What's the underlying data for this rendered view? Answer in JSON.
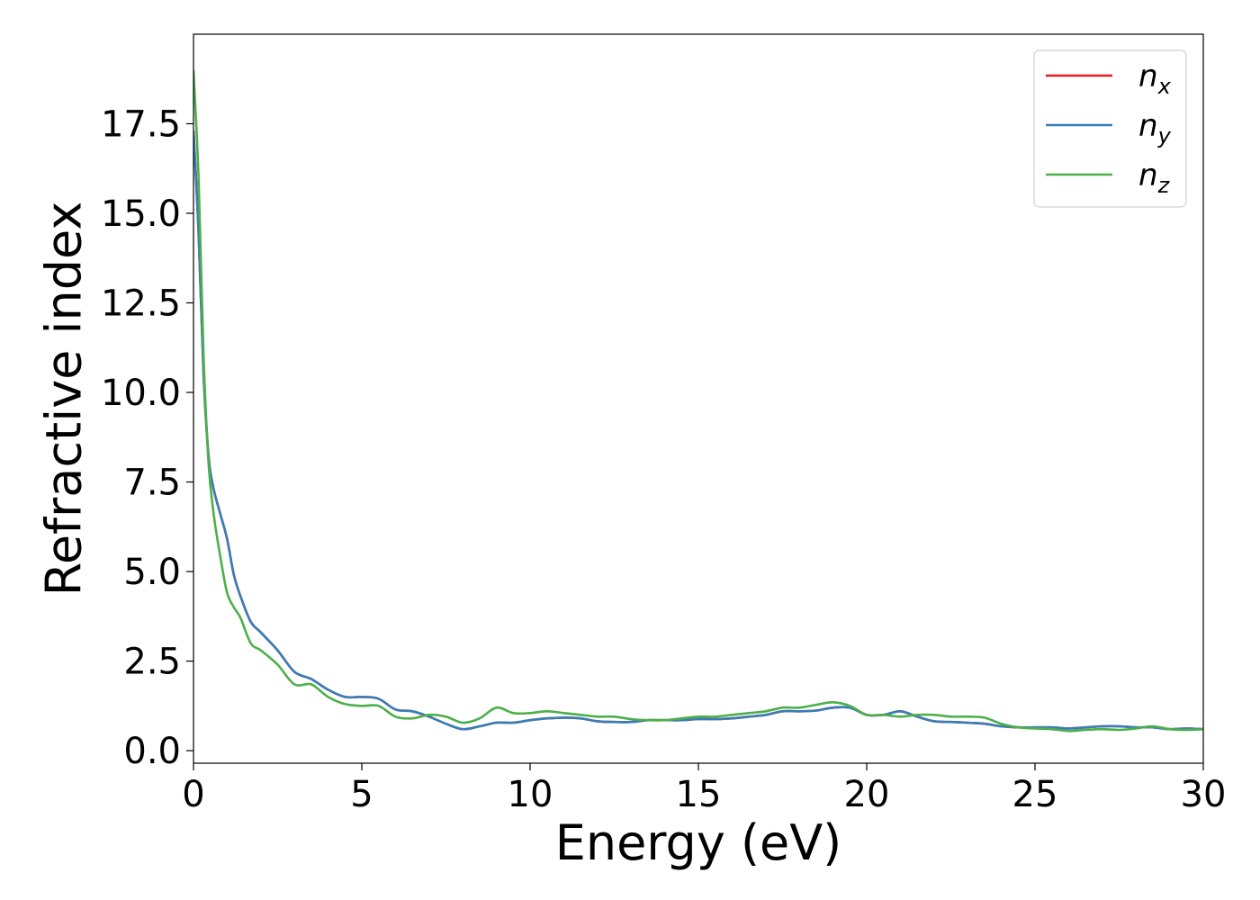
{
  "chart_data": {
    "type": "line",
    "title": "",
    "xlabel": "Energy (eV)",
    "ylabel": "Refractive index",
    "xlim": [
      0,
      30
    ],
    "ylim": [
      -0.35,
      20.0
    ],
    "xticks": [
      0,
      5,
      10,
      15,
      20,
      25,
      30
    ],
    "xtick_labels": [
      "0",
      "5",
      "10",
      "15",
      "20",
      "25",
      "30"
    ],
    "yticks": [
      0.0,
      2.5,
      5.0,
      7.5,
      10.0,
      12.5,
      15.0,
      17.5
    ],
    "ytick_labels": [
      "0.0",
      "2.5",
      "5.0",
      "7.5",
      "10.0",
      "12.5",
      "15.0",
      "17.5"
    ],
    "grid": false,
    "legend_position": "top-right",
    "series": [
      {
        "name": "n_x",
        "label_base": "n",
        "label_sub": "x",
        "color": "#e41a1c",
        "x": [
          0,
          0.15,
          0.3,
          0.45,
          0.6,
          0.8,
          1.0,
          1.2,
          1.4,
          1.7,
          2.0,
          2.5,
          3.0,
          3.5,
          4.0,
          4.5,
          5.0,
          5.5,
          6.0,
          6.5,
          7.0,
          7.5,
          8.0,
          8.5,
          9.0,
          9.5,
          10.0,
          10.5,
          11.0,
          11.5,
          12.0,
          12.5,
          13.0,
          13.5,
          14.0,
          14.5,
          15.0,
          15.5,
          16.0,
          16.5,
          17.0,
          17.5,
          18.0,
          18.5,
          19.0,
          19.5,
          20.0,
          20.5,
          21.0,
          21.5,
          22.0,
          22.5,
          23.0,
          23.5,
          24.0,
          24.5,
          25.0,
          25.5,
          26.0,
          26.5,
          27.0,
          27.5,
          28.0,
          28.5,
          29.0,
          29.5,
          30.0
        ],
        "y": [
          17.3,
          14.5,
          10.5,
          8.2,
          7.3,
          6.6,
          5.9,
          4.9,
          4.3,
          3.6,
          3.3,
          2.8,
          2.2,
          2.0,
          1.7,
          1.5,
          1.5,
          1.45,
          1.15,
          1.1,
          0.95,
          0.75,
          0.6,
          0.68,
          0.78,
          0.78,
          0.85,
          0.9,
          0.92,
          0.9,
          0.82,
          0.8,
          0.8,
          0.85,
          0.85,
          0.85,
          0.88,
          0.88,
          0.9,
          0.95,
          1.0,
          1.1,
          1.1,
          1.12,
          1.2,
          1.2,
          1.0,
          1.0,
          1.1,
          0.95,
          0.82,
          0.8,
          0.78,
          0.75,
          0.68,
          0.65,
          0.65,
          0.65,
          0.62,
          0.65,
          0.68,
          0.68,
          0.65,
          0.65,
          0.6,
          0.62,
          0.6
        ]
      },
      {
        "name": "n_y",
        "label_base": "n",
        "label_sub": "y",
        "color": "#377eb8",
        "x": [
          0,
          0.15,
          0.3,
          0.45,
          0.6,
          0.8,
          1.0,
          1.2,
          1.4,
          1.7,
          2.0,
          2.5,
          3.0,
          3.5,
          4.0,
          4.5,
          5.0,
          5.5,
          6.0,
          6.5,
          7.0,
          7.5,
          8.0,
          8.5,
          9.0,
          9.5,
          10.0,
          10.5,
          11.0,
          11.5,
          12.0,
          12.5,
          13.0,
          13.5,
          14.0,
          14.5,
          15.0,
          15.5,
          16.0,
          16.5,
          17.0,
          17.5,
          18.0,
          18.5,
          19.0,
          19.5,
          20.0,
          20.5,
          21.0,
          21.5,
          22.0,
          22.5,
          23.0,
          23.5,
          24.0,
          24.5,
          25.0,
          25.5,
          26.0,
          26.5,
          27.0,
          27.5,
          28.0,
          28.5,
          29.0,
          29.5,
          30.0
        ],
        "y": [
          17.3,
          14.5,
          10.5,
          8.2,
          7.3,
          6.6,
          5.9,
          4.9,
          4.3,
          3.6,
          3.3,
          2.8,
          2.2,
          2.0,
          1.7,
          1.5,
          1.5,
          1.45,
          1.15,
          1.1,
          0.95,
          0.75,
          0.6,
          0.68,
          0.78,
          0.78,
          0.85,
          0.9,
          0.92,
          0.9,
          0.82,
          0.8,
          0.8,
          0.85,
          0.85,
          0.85,
          0.88,
          0.88,
          0.9,
          0.95,
          1.0,
          1.1,
          1.1,
          1.12,
          1.2,
          1.2,
          1.0,
          1.0,
          1.1,
          0.95,
          0.82,
          0.8,
          0.78,
          0.75,
          0.68,
          0.65,
          0.65,
          0.65,
          0.62,
          0.65,
          0.68,
          0.68,
          0.65,
          0.65,
          0.6,
          0.62,
          0.6
        ]
      },
      {
        "name": "n_z",
        "label_base": "n",
        "label_sub": "z",
        "color": "#4daf4a",
        "x": [
          0,
          0.15,
          0.3,
          0.45,
          0.6,
          0.8,
          1.0,
          1.2,
          1.4,
          1.7,
          2.0,
          2.5,
          3.0,
          3.5,
          4.0,
          4.5,
          5.0,
          5.5,
          6.0,
          6.5,
          7.0,
          7.5,
          8.0,
          8.5,
          9.0,
          9.5,
          10.0,
          10.5,
          11.0,
          11.5,
          12.0,
          12.5,
          13.0,
          13.5,
          14.0,
          14.5,
          15.0,
          15.5,
          16.0,
          16.5,
          17.0,
          17.5,
          18.0,
          18.5,
          19.0,
          19.5,
          20.0,
          20.5,
          21.0,
          21.5,
          22.0,
          22.5,
          23.0,
          23.5,
          24.0,
          24.5,
          25.0,
          25.5,
          26.0,
          26.5,
          27.0,
          27.5,
          28.0,
          28.5,
          29.0,
          29.5,
          30.0
        ],
        "y": [
          19.0,
          16.0,
          11.0,
          8.0,
          6.6,
          5.4,
          4.4,
          4.0,
          3.7,
          3.0,
          2.8,
          2.4,
          1.85,
          1.85,
          1.5,
          1.3,
          1.25,
          1.25,
          0.95,
          0.9,
          1.0,
          0.95,
          0.78,
          0.9,
          1.2,
          1.05,
          1.05,
          1.1,
          1.05,
          1.0,
          0.95,
          0.95,
          0.88,
          0.85,
          0.85,
          0.9,
          0.95,
          0.95,
          1.0,
          1.05,
          1.1,
          1.2,
          1.2,
          1.28,
          1.35,
          1.25,
          1.0,
          1.0,
          0.95,
          1.0,
          1.0,
          0.95,
          0.95,
          0.92,
          0.75,
          0.65,
          0.62,
          0.6,
          0.55,
          0.58,
          0.6,
          0.58,
          0.62,
          0.68,
          0.6,
          0.58,
          0.6
        ]
      }
    ]
  }
}
